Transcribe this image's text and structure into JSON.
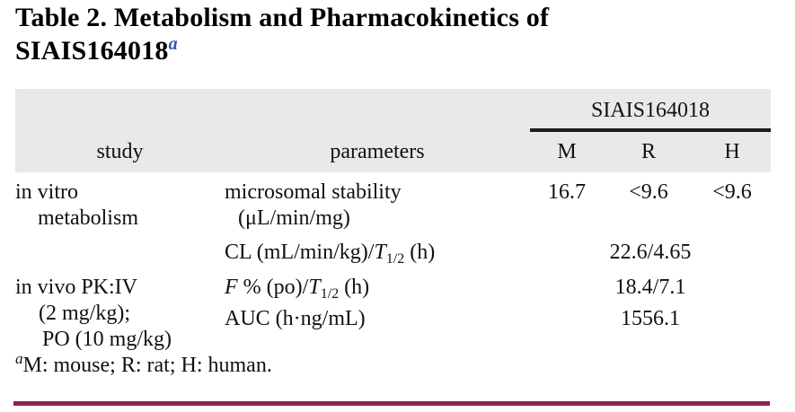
{
  "title": {
    "line1": "Table 2. Metabolism and Pharmacokinetics of",
    "line2": "SIAIS164018",
    "footnote_marker": "a"
  },
  "table": {
    "compound_header": "SIAIS164018",
    "col_study": "study",
    "col_parameters": "parameters",
    "col_m": "M",
    "col_r": "R",
    "col_h": "H",
    "rows": {
      "invitro": {
        "study_line1": "in vitro",
        "study_line2": "metabolism",
        "param_line1": "microsomal stability",
        "param_line2": "(μL/min/mg)",
        "value_m": "16.7",
        "value_r": "<9.6",
        "value_h": "<9.6"
      },
      "cl": {
        "param_prefix": "CL (mL/min/kg)/",
        "param_italic": "T",
        "param_sub": "1/2",
        "param_suffix": " (h)",
        "value": "22.6/4.65"
      },
      "invivo": {
        "study_line1": "in vivo PK:IV",
        "study_line2": "(2 mg/kg);",
        "study_line3": "PO (10 mg/kg)",
        "fpo": {
          "param_italic1": "F",
          "param_mid": " % (po)/",
          "param_italic2": "T",
          "param_sub": "1/2",
          "param_suffix": " (h)",
          "value": "18.4/7.1"
        },
        "auc": {
          "param": "AUC (h·ng/mL)",
          "value": "1556.1"
        }
      }
    }
  },
  "footnote": {
    "marker": "a",
    "text": "M: mouse; R: rat; H: human."
  },
  "colors": {
    "accent_bottom_rule": "#92244b",
    "header_band_bg": "#e9e9e8",
    "header_rule_black": "#1c1c1c",
    "footnote_link_blue": "#2d56b0",
    "text": "#111111"
  }
}
